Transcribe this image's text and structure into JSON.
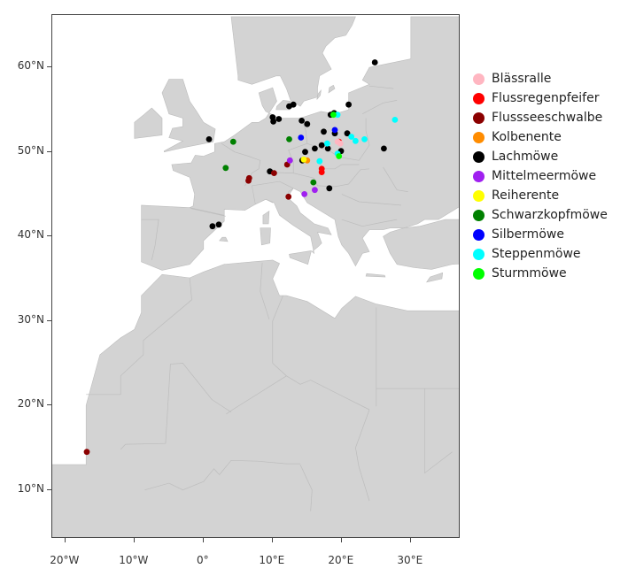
{
  "map": {
    "land_color": "#d3d3d3",
    "water_color": "#ffffff",
    "border_color": "#bdbdbd",
    "lat_ticks": [
      {
        "lat": 60,
        "label": "60°N"
      },
      {
        "lat": 50,
        "label": "50°N"
      },
      {
        "lat": 40,
        "label": "40°N"
      },
      {
        "lat": 30,
        "label": "30°N"
      },
      {
        "lat": 20,
        "label": "20°N"
      },
      {
        "lat": 10,
        "label": "10°N"
      }
    ],
    "lon_ticks": [
      {
        "lon": -20,
        "label": "20°W"
      },
      {
        "lon": -10,
        "label": "10°W"
      },
      {
        "lon": 0,
        "label": "0°"
      },
      {
        "lon": 10,
        "label": "10°E"
      },
      {
        "lon": 20,
        "label": "20°E"
      },
      {
        "lon": 30,
        "label": "30°E"
      }
    ],
    "lon_range": [
      -22,
      37
    ],
    "lat_range": [
      4,
      66
    ]
  },
  "legend": [
    {
      "name": "Blässralle",
      "color": "#ffb6c1"
    },
    {
      "name": "Flussregenpfeifer",
      "color": "#ff0000"
    },
    {
      "name": "Flussseeschwalbe",
      "color": "#8b0000"
    },
    {
      "name": "Kolbenente",
      "color": "#ff8c00"
    },
    {
      "name": "Lachmöwe",
      "color": "#000000"
    },
    {
      "name": "Mittelmeermöwe",
      "color": "#a020f0"
    },
    {
      "name": "Reiherente",
      "color": "#ffff00"
    },
    {
      "name": "Schwarzkopfmöwe",
      "color": "#008000"
    },
    {
      "name": "Silbermöwe",
      "color": "#0000ff"
    },
    {
      "name": "Steppenmöwe",
      "color": "#00ffff"
    },
    {
      "name": "Sturmmöwe",
      "color": "#00ff00"
    }
  ],
  "points": [
    {
      "species": "Lachmöwe",
      "lon": 24.8,
      "lat": 60.6
    },
    {
      "species": "Lachmöwe",
      "lon": 12.4,
      "lat": 55.4
    },
    {
      "species": "Lachmöwe",
      "lon": 13.0,
      "lat": 55.6
    },
    {
      "species": "Lachmöwe",
      "lon": 21.0,
      "lat": 55.6
    },
    {
      "species": "Lachmöwe",
      "lon": 10.0,
      "lat": 54.1
    },
    {
      "species": "Lachmöwe",
      "lon": 10.9,
      "lat": 53.9
    },
    {
      "species": "Lachmöwe",
      "lon": 10.1,
      "lat": 53.6
    },
    {
      "species": "Lachmöwe",
      "lon": 14.2,
      "lat": 53.7
    },
    {
      "species": "Lachmöwe",
      "lon": 15.0,
      "lat": 53.3
    },
    {
      "species": "Lachmöwe",
      "lon": 18.4,
      "lat": 54.4
    },
    {
      "species": "Lachmöwe",
      "lon": 18.9,
      "lat": 54.6
    },
    {
      "species": "Lachmöwe",
      "lon": 17.4,
      "lat": 52.4
    },
    {
      "species": "Lachmöwe",
      "lon": 19.0,
      "lat": 52.2
    },
    {
      "species": "Lachmöwe",
      "lon": 20.8,
      "lat": 52.2
    },
    {
      "species": "Lachmöwe",
      "lon": 0.8,
      "lat": 51.5
    },
    {
      "species": "Lachmöwe",
      "lon": 16.1,
      "lat": 50.4
    },
    {
      "species": "Lachmöwe",
      "lon": 17.1,
      "lat": 50.8
    },
    {
      "species": "Lachmöwe",
      "lon": 18.0,
      "lat": 50.4
    },
    {
      "species": "Lachmöwe",
      "lon": 19.9,
      "lat": 50.1
    },
    {
      "species": "Lachmöwe",
      "lon": 26.1,
      "lat": 50.4
    },
    {
      "species": "Lachmöwe",
      "lon": 14.7,
      "lat": 50.0
    },
    {
      "species": "Lachmöwe",
      "lon": 9.6,
      "lat": 47.7
    },
    {
      "species": "Lachmöwe",
      "lon": 14.3,
      "lat": 49.0
    },
    {
      "species": "Lachmöwe",
      "lon": 18.2,
      "lat": 45.7
    },
    {
      "species": "Lachmöwe",
      "lon": 1.3,
      "lat": 41.2
    },
    {
      "species": "Lachmöwe",
      "lon": 2.2,
      "lat": 41.4
    },
    {
      "species": "Flussseeschwalbe",
      "lon": 6.5,
      "lat": 46.6
    },
    {
      "species": "Flussseeschwalbe",
      "lon": 6.6,
      "lat": 46.9
    },
    {
      "species": "Flussseeschwalbe",
      "lon": 10.2,
      "lat": 47.5
    },
    {
      "species": "Flussseeschwalbe",
      "lon": 12.1,
      "lat": 48.5
    },
    {
      "species": "Flussseeschwalbe",
      "lon": 12.3,
      "lat": 44.7
    },
    {
      "species": "Flussseeschwalbe",
      "lon": -16.9,
      "lat": 14.5
    },
    {
      "species": "Flussregenpfeifer",
      "lon": 17.1,
      "lat": 48.0
    },
    {
      "species": "Flussregenpfeifer",
      "lon": 17.1,
      "lat": 47.6
    },
    {
      "species": "Flussregenpfeifer",
      "lon": 19.6,
      "lat": 51.2
    },
    {
      "species": "Blässralle",
      "lon": 19.4,
      "lat": 51.2
    },
    {
      "species": "Blässralle",
      "lon": 19.8,
      "lat": 51.0
    },
    {
      "species": "Schwarzkopfmöwe",
      "lon": 4.3,
      "lat": 51.2
    },
    {
      "species": "Schwarzkopfmöwe",
      "lon": 3.2,
      "lat": 48.1
    },
    {
      "species": "Schwarzkopfmöwe",
      "lon": 12.4,
      "lat": 51.5
    },
    {
      "species": "Schwarzkopfmöwe",
      "lon": 15.9,
      "lat": 46.4
    },
    {
      "species": "Mittelmeermöwe",
      "lon": 12.5,
      "lat": 49.0
    },
    {
      "species": "Mittelmeermöwe",
      "lon": 14.6,
      "lat": 45.0
    },
    {
      "species": "Mittelmeermöwe",
      "lon": 16.1,
      "lat": 45.5
    },
    {
      "species": "Silbermöwe",
      "lon": 14.1,
      "lat": 51.7
    },
    {
      "species": "Silbermöwe",
      "lon": 19.0,
      "lat": 52.6
    },
    {
      "species": "Kolbenente",
      "lon": 15.0,
      "lat": 49.0
    },
    {
      "species": "Reiherente",
      "lon": 14.5,
      "lat": 49.1
    },
    {
      "species": "Steppenmöwe",
      "lon": 19.4,
      "lat": 54.4
    },
    {
      "species": "Steppenmöwe",
      "lon": 27.7,
      "lat": 53.8
    },
    {
      "species": "Steppenmöwe",
      "lon": 21.4,
      "lat": 51.8
    },
    {
      "species": "Steppenmöwe",
      "lon": 22.0,
      "lat": 51.3
    },
    {
      "species": "Steppenmöwe",
      "lon": 23.3,
      "lat": 51.5
    },
    {
      "species": "Steppenmöwe",
      "lon": 17.9,
      "lat": 51.0
    },
    {
      "species": "Steppenmöwe",
      "lon": 19.4,
      "lat": 49.8
    },
    {
      "species": "Steppenmöwe",
      "lon": 16.8,
      "lat": 48.9
    },
    {
      "species": "Sturmmöwe",
      "lon": 18.8,
      "lat": 54.4
    },
    {
      "species": "Sturmmöwe",
      "lon": 19.6,
      "lat": 49.5
    }
  ]
}
